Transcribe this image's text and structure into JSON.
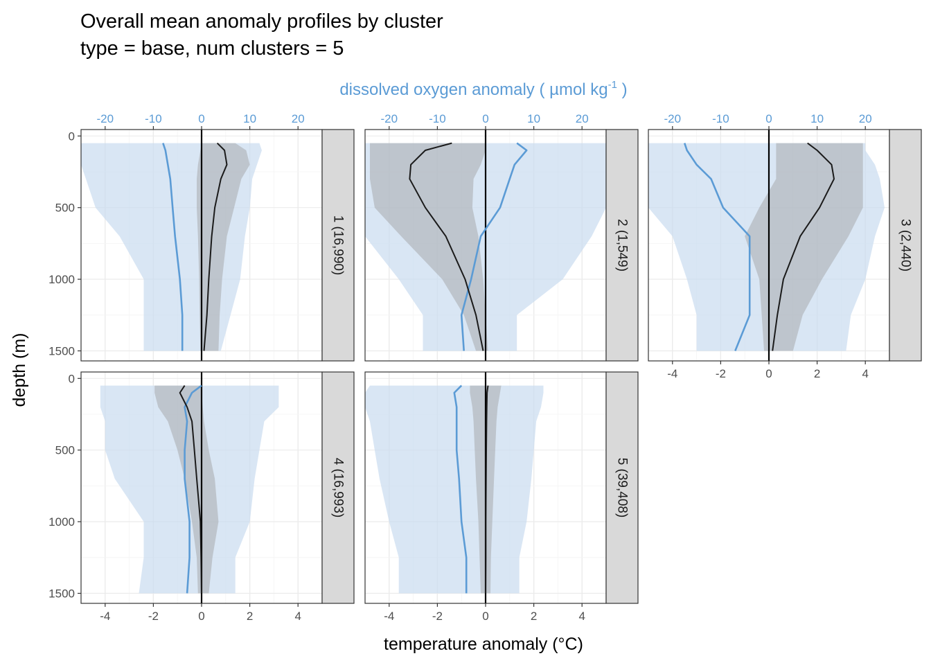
{
  "chart_data": {
    "type": "line",
    "title": "Overall mean anomaly profiles by cluster",
    "subtitle": "type = base, num clusters = 5",
    "xlabel": "temperature anomaly (°C)",
    "x2label": "dissolved oxygen anomaly ( µmol kg",
    "x2label_sup": "-1",
    "x2label_end": " )",
    "ylabel": "depth (m)",
    "xlim": [
      -5,
      5
    ],
    "x2lim": [
      -25,
      25
    ],
    "ylim": [
      1570,
      -45
    ],
    "x_ticks": [
      -4,
      -2,
      0,
      2,
      4
    ],
    "x_tick_labels": [
      "-4",
      "-2",
      "0",
      "2",
      "4"
    ],
    "x2_ticks": [
      -20,
      -10,
      0,
      10,
      20
    ],
    "x2_tick_labels": [
      "-20",
      "-10",
      "0",
      "10",
      "20"
    ],
    "y_ticks": [
      0,
      500,
      1000,
      1500
    ],
    "y_tick_labels": [
      "0",
      "500",
      "1000",
      "1500"
    ],
    "grid": true,
    "colors": {
      "temperature": "#1a1a1a",
      "temperature_band": "#9e9e9e",
      "oxygen": "#5b9bd5",
      "oxygen_band": "#c9dbef",
      "strip": "#d9d9d9",
      "zero_line": "#000000"
    },
    "panels": [
      {
        "strip": "1 (16,990)",
        "depth": [
          50,
          100,
          200,
          300,
          500,
          700,
          1000,
          1250,
          1500
        ],
        "temperature_mean": [
          0.65,
          0.95,
          1.05,
          0.8,
          0.55,
          0.42,
          0.3,
          0.22,
          0.1
        ],
        "temperature_band": [
          [
            0.0,
            1.4
          ],
          [
            -0.05,
            1.85
          ],
          [
            -0.15,
            2.0
          ],
          [
            -0.2,
            1.65
          ],
          [
            -0.2,
            1.35
          ],
          [
            -0.15,
            1.05
          ],
          [
            -0.1,
            0.85
          ],
          [
            -0.08,
            0.75
          ],
          [
            -0.05,
            0.7
          ]
        ],
        "oxygen_mean": [
          -8.0,
          -7.5,
          -7.0,
          -6.5,
          -6.0,
          -5.5,
          -4.5,
          -4.0,
          -4.0
        ],
        "oxygen_band": [
          [
            -25,
            12.0
          ],
          [
            -25,
            12.5
          ],
          [
            -25,
            11.5
          ],
          [
            -24,
            10.5
          ],
          [
            -22,
            10.0
          ],
          [
            -17,
            9.0
          ],
          [
            -12,
            8.0
          ],
          [
            -12,
            6.0
          ],
          [
            -12,
            4.0
          ]
        ]
      },
      {
        "strip": "2 (1,549)",
        "depth": [
          50,
          100,
          200,
          300,
          500,
          700,
          1000,
          1250,
          1500
        ],
        "temperature_mean": [
          -1.4,
          -2.5,
          -3.1,
          -3.15,
          -2.5,
          -1.65,
          -0.85,
          -0.4,
          -0.1
        ],
        "temperature_band": [
          [
            -4.8,
            0.0
          ],
          [
            -4.8,
            0.0
          ],
          [
            -4.8,
            -0.2
          ],
          [
            -4.8,
            -0.5
          ],
          [
            -4.6,
            -0.55
          ],
          [
            -3.5,
            -0.3
          ],
          [
            -1.8,
            -0.1
          ],
          [
            -0.9,
            0.0
          ],
          [
            -0.4,
            0.1
          ]
        ],
        "oxygen_mean": [
          6.5,
          8.5,
          6.0,
          5.0,
          3.0,
          -1.0,
          -3.0,
          -5.0,
          -4.5
        ],
        "oxygen_band": [
          [
            -25,
            25.0
          ],
          [
            -25,
            25.0
          ],
          [
            -25,
            25.0
          ],
          [
            -25,
            25.0
          ],
          [
            -25,
            25.0
          ],
          [
            -25,
            22.0
          ],
          [
            -18,
            16.0
          ],
          [
            -13,
            6.5
          ],
          [
            -13,
            6.5
          ]
        ]
      },
      {
        "strip": "3 (2,440)",
        "depth": [
          50,
          100,
          200,
          300,
          500,
          700,
          1000,
          1250,
          1500
        ],
        "temperature_mean": [
          1.6,
          2.0,
          2.6,
          2.7,
          2.1,
          1.3,
          0.6,
          0.35,
          0.15
        ],
        "temperature_band": [
          [
            0.3,
            3.9
          ],
          [
            0.3,
            3.9
          ],
          [
            0.3,
            3.9
          ],
          [
            0.3,
            3.9
          ],
          [
            -0.4,
            3.9
          ],
          [
            -1.0,
            3.3
          ],
          [
            -0.4,
            2.2
          ],
          [
            -0.3,
            1.4
          ],
          [
            -0.2,
            1.0
          ]
        ],
        "oxygen_mean": [
          -17.5,
          -17.0,
          -15.0,
          -12.0,
          -9.5,
          -4.0,
          -4.0,
          -4.0,
          -7.0
        ],
        "oxygen_band": [
          [
            -25,
            20.0
          ],
          [
            -25,
            20.0
          ],
          [
            -25,
            22.0
          ],
          [
            -25,
            23.0
          ],
          [
            -25,
            24.0
          ],
          [
            -20,
            22.0
          ],
          [
            -17,
            20.0
          ],
          [
            -15,
            17.0
          ],
          [
            -15,
            16.0
          ]
        ]
      },
      {
        "strip": "4 (16,993)",
        "depth": [
          50,
          100,
          200,
          300,
          500,
          700,
          1000,
          1250,
          1500
        ],
        "temperature_mean": [
          -0.7,
          -0.9,
          -0.6,
          -0.4,
          -0.3,
          -0.2,
          -0.05,
          -0.02,
          0.0
        ],
        "temperature_band": [
          [
            -1.95,
            0.0
          ],
          [
            -1.95,
            0.0
          ],
          [
            -1.8,
            0.05
          ],
          [
            -1.4,
            0.1
          ],
          [
            -1.0,
            0.3
          ],
          [
            -0.7,
            0.55
          ],
          [
            -0.4,
            0.7
          ],
          [
            -0.2,
            0.45
          ],
          [
            -0.15,
            0.3
          ]
        ],
        "oxygen_mean": [
          0.0,
          -2.0,
          -3.5,
          -3.0,
          -3.5,
          -3.5,
          -2.5,
          -2.5,
          -3.0
        ],
        "oxygen_band": [
          [
            -21,
            16.0
          ],
          [
            -21,
            16.0
          ],
          [
            -21,
            16.0
          ],
          [
            -20,
            13.0
          ],
          [
            -20,
            12.0
          ],
          [
            -18,
            11.0
          ],
          [
            -12,
            10.0
          ],
          [
            -12,
            7.0
          ],
          [
            -13,
            7.0
          ]
        ]
      },
      {
        "strip": "5 (39,408)",
        "depth": [
          50,
          100,
          200,
          300,
          500,
          700,
          1000,
          1250,
          1500
        ],
        "temperature_mean": [
          0.1,
          0.06,
          0.05,
          0.04,
          0.03,
          0.02,
          0.01,
          0.01,
          0.0
        ],
        "temperature_band": [
          [
            -0.65,
            0.65
          ],
          [
            -0.65,
            0.6
          ],
          [
            -0.55,
            0.5
          ],
          [
            -0.5,
            0.45
          ],
          [
            -0.45,
            0.4
          ],
          [
            -0.4,
            0.35
          ],
          [
            -0.3,
            0.28
          ],
          [
            -0.25,
            0.22
          ],
          [
            -0.2,
            0.2
          ]
        ],
        "oxygen_mean": [
          -5.0,
          -6.5,
          -6.0,
          -6.0,
          -6.0,
          -5.5,
          -5.0,
          -4.0,
          -4.0
        ],
        "oxygen_band": [
          [
            -24,
            12.0
          ],
          [
            -25,
            12.0
          ],
          [
            -25,
            11.5
          ],
          [
            -24,
            10.5
          ],
          [
            -23,
            10.0
          ],
          [
            -22,
            9.5
          ],
          [
            -20,
            8.5
          ],
          [
            -18,
            7.0
          ],
          [
            -18,
            7.0
          ]
        ]
      }
    ]
  }
}
